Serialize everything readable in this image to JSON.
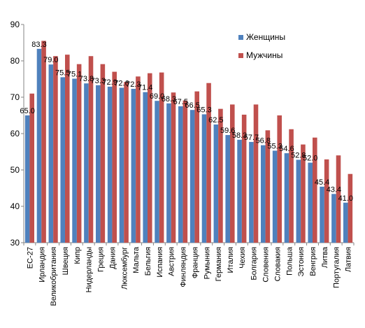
{
  "chart_data": {
    "type": "bar",
    "title": "",
    "xlabel": "",
    "ylabel": "",
    "ylim": [
      30,
      90
    ],
    "yticks": [
      30,
      40,
      50,
      60,
      70,
      80,
      90
    ],
    "grid": false,
    "legend_position": "top-right",
    "categories": [
      "ЕС-27",
      "Ирландия",
      "Великобритания",
      "Швеция",
      "Кипр",
      "Нидерланды",
      "Греция",
      "Дания",
      "Люксембург",
      "Мальта",
      "Бельгия",
      "Испания",
      "Австрия",
      "Финляндия",
      "Франция",
      "Румыния",
      "Германия",
      "Италия",
      "Чехия",
      "Болгария",
      "Словения",
      "Словакия",
      "Польша",
      "Эстония",
      "Венгрия",
      "Литва",
      "Португалия",
      "Латвия"
    ],
    "series": [
      {
        "name": "Женщины",
        "color": "#4F81BD",
        "values": [
          65.0,
          83.3,
          79.0,
          75.5,
          75.1,
          73.8,
          73.3,
          72.9,
          72.6,
          72.3,
          71.4,
          69.0,
          68.3,
          67.5,
          66.5,
          65.3,
          62.5,
          59.6,
          58.3,
          57.7,
          56.8,
          55.3,
          54.6,
          52.8,
          52.0,
          45.4,
          43.4,
          41.0
        ],
        "labels": [
          "65.0",
          "83.3",
          "79.0",
          "75.5",
          "75.1",
          "73.8",
          "73.3",
          "72.9",
          "72.6",
          "72.3",
          "71.4",
          "69.0",
          "68.3",
          "67.5",
          "66.5",
          "65.3",
          "62.5",
          "59.6",
          "58.3",
          "57.7",
          "56.8",
          "55.3",
          "54.6",
          "52.8",
          "52.0",
          "45.4",
          "43.4",
          "41.0"
        ]
      },
      {
        "name": "Мужчины",
        "color": "#C0504D",
        "values": [
          71.0,
          85.5,
          81.3,
          81.7,
          79.1,
          81.3,
          79.1,
          77.0,
          74.2,
          75.7,
          76.6,
          76.8,
          71.3,
          69.1,
          71.6,
          73.9,
          66.8,
          68.0,
          65.2,
          68.0,
          60.9,
          65.0,
          61.2,
          57.0,
          58.9,
          52.9,
          54.0,
          48.9
        ]
      }
    ]
  }
}
